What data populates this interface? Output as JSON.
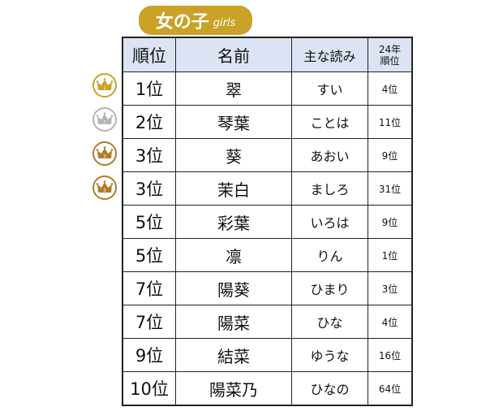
{
  "title": {
    "jp": "女の子",
    "en": "girls",
    "color": "#c9a227"
  },
  "headers": {
    "rank": "順位",
    "name": "名前",
    "reading": "主な読み",
    "prev_line1": "24年",
    "prev_line2": "順位"
  },
  "crowns": [
    {
      "label": "1",
      "color": "#c9a227"
    },
    {
      "label": "2",
      "color": "#b5b5b5"
    },
    {
      "label": "3",
      "color": "#b07d2a"
    },
    {
      "label": "3",
      "color": "#b07d2a"
    }
  ],
  "rows": [
    {
      "rank": "1位",
      "name": "翠",
      "reading": "すい",
      "prev": "4位"
    },
    {
      "rank": "2位",
      "name": "琴葉",
      "reading": "ことは",
      "prev": "11位"
    },
    {
      "rank": "3位",
      "name": "葵",
      "reading": "あおい",
      "prev": "9位"
    },
    {
      "rank": "3位",
      "name": "茉白",
      "reading": "ましろ",
      "prev": "31位"
    },
    {
      "rank": "5位",
      "name": "彩葉",
      "reading": "いろは",
      "prev": "9位"
    },
    {
      "rank": "5位",
      "name": "凛",
      "reading": "りん",
      "prev": "1位"
    },
    {
      "rank": "7位",
      "name": "陽葵",
      "reading": "ひまり",
      "prev": "3位"
    },
    {
      "rank": "7位",
      "name": "陽菜",
      "reading": "ひな",
      "prev": "4位"
    },
    {
      "rank": "9位",
      "name": "結菜",
      "reading": "ゆうな",
      "prev": "16位"
    },
    {
      "rank": "10位",
      "name": "陽菜乃",
      "reading": "ひなの",
      "prev": "64位"
    }
  ]
}
